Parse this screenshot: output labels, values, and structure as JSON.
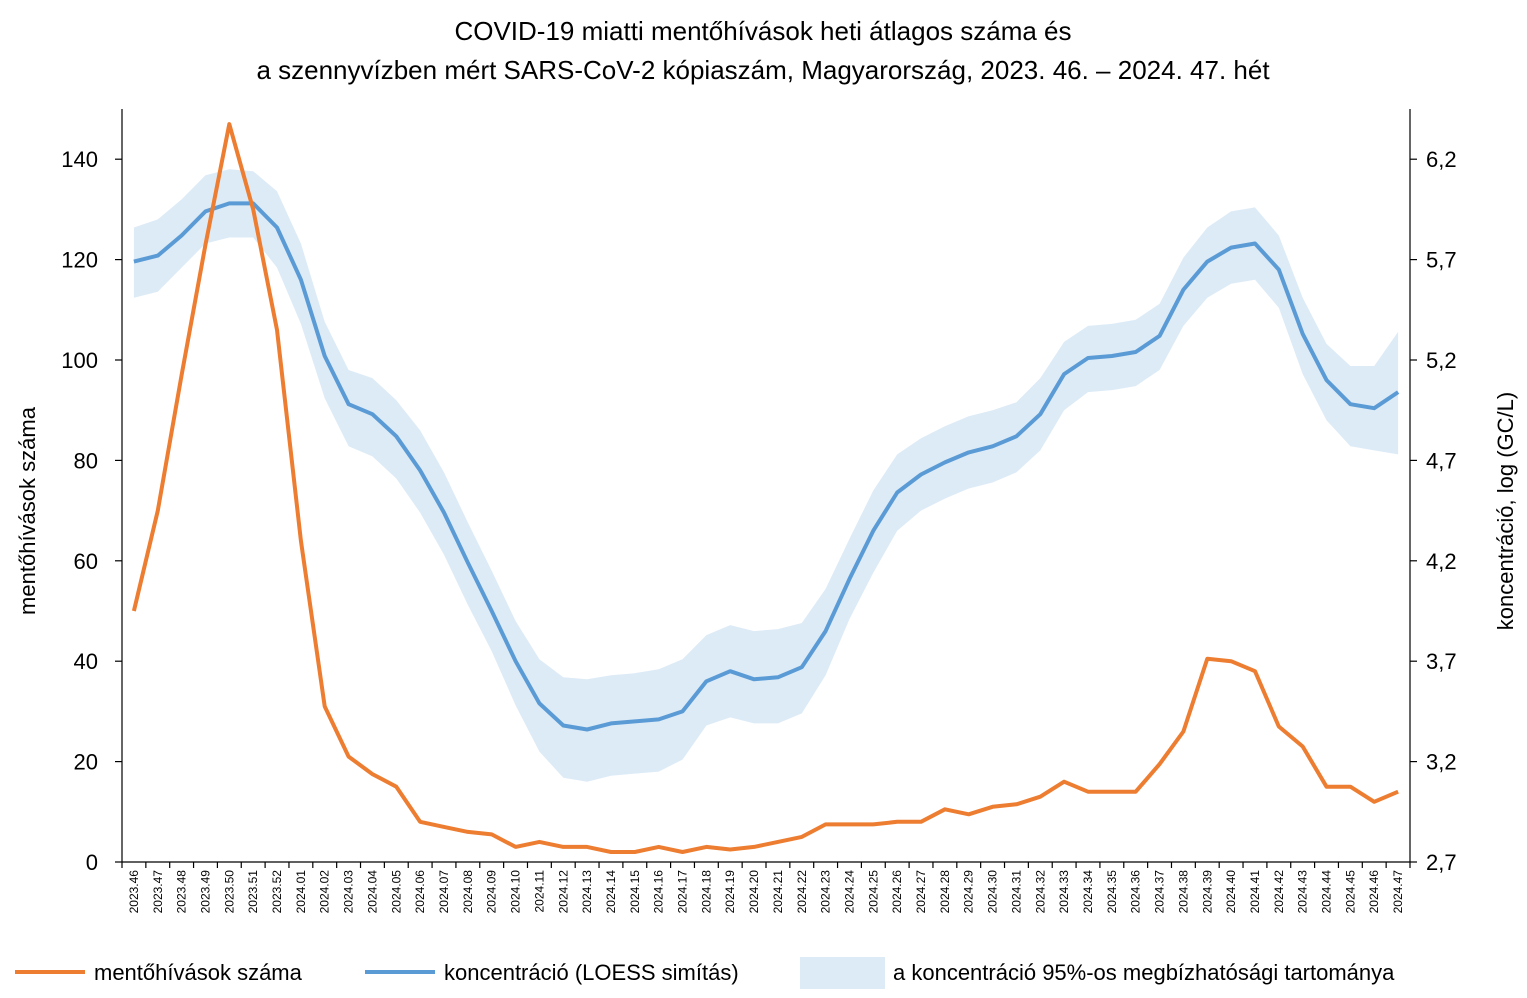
{
  "chart_data": {
    "type": "line",
    "title_lines": [
      "COVID-19 miatti mentőhívások heti átlagos száma és",
      "a szennyvízben mért SARS-CoV-2 kópiaszám, Magyarország, 2023. 46. – 2024. 47. hét"
    ],
    "ylabel_left": "mentőhívások száma",
    "ylabel_right": "koncentráció,  log (GC/L)",
    "ylim_left": [
      0,
      150
    ],
    "yticks_left": [
      0,
      20,
      40,
      60,
      80,
      100,
      120,
      140
    ],
    "ylim_right": [
      2.7,
      6.45
    ],
    "yticks_right": [
      2.7,
      3.2,
      3.7,
      4.2,
      4.7,
      5.2,
      5.7,
      6.2
    ],
    "yticks_right_labels": [
      "2,7",
      "3,2",
      "3,7",
      "4,2",
      "4,7",
      "5,2",
      "5,7",
      "6,2"
    ],
    "categories": [
      "2023.46",
      "2023.47",
      "2023.48",
      "2023.49",
      "2023.50",
      "2023.51",
      "2023.52",
      "2024.01",
      "2024.02",
      "2024.03",
      "2024.04",
      "2024.05",
      "2024.06",
      "2024.07",
      "2024.08",
      "2024.09",
      "2024.10",
      "2024.11",
      "2024.12",
      "2024.13",
      "2024.14",
      "2024.15",
      "2024.16",
      "2024.17",
      "2024.18",
      "2024.19",
      "2024.20",
      "2024.21",
      "2024.22",
      "2024.23",
      "2024.24",
      "2024.25",
      "2024.26",
      "2024.27",
      "2024.28",
      "2024.29",
      "2024.30",
      "2024.31",
      "2024.32",
      "2024.33",
      "2024.34",
      "2024.35",
      "2024.36",
      "2024.37",
      "2024.38",
      "2024.39",
      "2024.40",
      "2024.41",
      "2024.42",
      "2024.43",
      "2024.44",
      "2024.45",
      "2024.46",
      "2024.47"
    ],
    "series": [
      {
        "name": "mentőhívások száma",
        "axis": "left",
        "color": "#ED7D31",
        "values": [
          50,
          70,
          97,
          123,
          147,
          130,
          106,
          64,
          31,
          21,
          17.5,
          15,
          8,
          7,
          6,
          5.5,
          3,
          4,
          3,
          3,
          2,
          2,
          3,
          2,
          3,
          2.5,
          3,
          4,
          5,
          7.5,
          7.5,
          7.5,
          8,
          8,
          10.5,
          9.5,
          11,
          11.5,
          13,
          16,
          14,
          14,
          14,
          19.5,
          26,
          40.5,
          40,
          38,
          27,
          23,
          15,
          15,
          12,
          14
        ]
      },
      {
        "name": "koncentráció (LOESS simítás)",
        "axis": "right",
        "color": "#5B9BD5",
        "values": [
          5.69,
          5.72,
          5.82,
          5.94,
          5.98,
          5.98,
          5.86,
          5.6,
          5.22,
          4.98,
          4.93,
          4.82,
          4.65,
          4.44,
          4.19,
          3.95,
          3.7,
          3.49,
          3.38,
          3.36,
          3.39,
          3.4,
          3.41,
          3.45,
          3.6,
          3.65,
          3.61,
          3.62,
          3.67,
          3.85,
          4.11,
          4.35,
          4.54,
          4.63,
          4.69,
          4.74,
          4.77,
          4.82,
          4.93,
          5.13,
          5.21,
          5.22,
          5.24,
          5.32,
          5.55,
          5.69,
          5.76,
          5.78,
          5.65,
          5.33,
          5.1,
          4.98,
          4.96,
          5.04
        ]
      },
      {
        "name": "a koncentráció 95%-os megbízhatósági tartománya",
        "axis": "right",
        "color": "#DDEBF7",
        "lower": [
          5.51,
          5.54,
          5.66,
          5.78,
          5.81,
          5.81,
          5.66,
          5.38,
          5.01,
          4.77,
          4.72,
          4.61,
          4.44,
          4.23,
          3.98,
          3.75,
          3.48,
          3.25,
          3.12,
          3.1,
          3.13,
          3.14,
          3.15,
          3.21,
          3.38,
          3.42,
          3.39,
          3.39,
          3.44,
          3.63,
          3.91,
          4.14,
          4.35,
          4.45,
          4.51,
          4.56,
          4.59,
          4.64,
          4.75,
          4.95,
          5.04,
          5.05,
          5.07,
          5.15,
          5.37,
          5.51,
          5.58,
          5.6,
          5.46,
          5.13,
          4.9,
          4.77,
          4.75,
          4.73
        ],
        "upper": [
          5.86,
          5.9,
          6.0,
          6.12,
          6.15,
          6.14,
          6.04,
          5.78,
          5.39,
          5.15,
          5.11,
          5.0,
          4.85,
          4.64,
          4.39,
          4.15,
          3.9,
          3.71,
          3.62,
          3.61,
          3.63,
          3.64,
          3.66,
          3.71,
          3.83,
          3.88,
          3.85,
          3.86,
          3.89,
          4.06,
          4.31,
          4.55,
          4.73,
          4.81,
          4.87,
          4.92,
          4.95,
          4.99,
          5.11,
          5.29,
          5.37,
          5.38,
          5.4,
          5.48,
          5.71,
          5.86,
          5.94,
          5.96,
          5.82,
          5.51,
          5.28,
          5.17,
          5.17,
          5.34
        ]
      }
    ],
    "legend_position": "bottom",
    "grid": false
  }
}
